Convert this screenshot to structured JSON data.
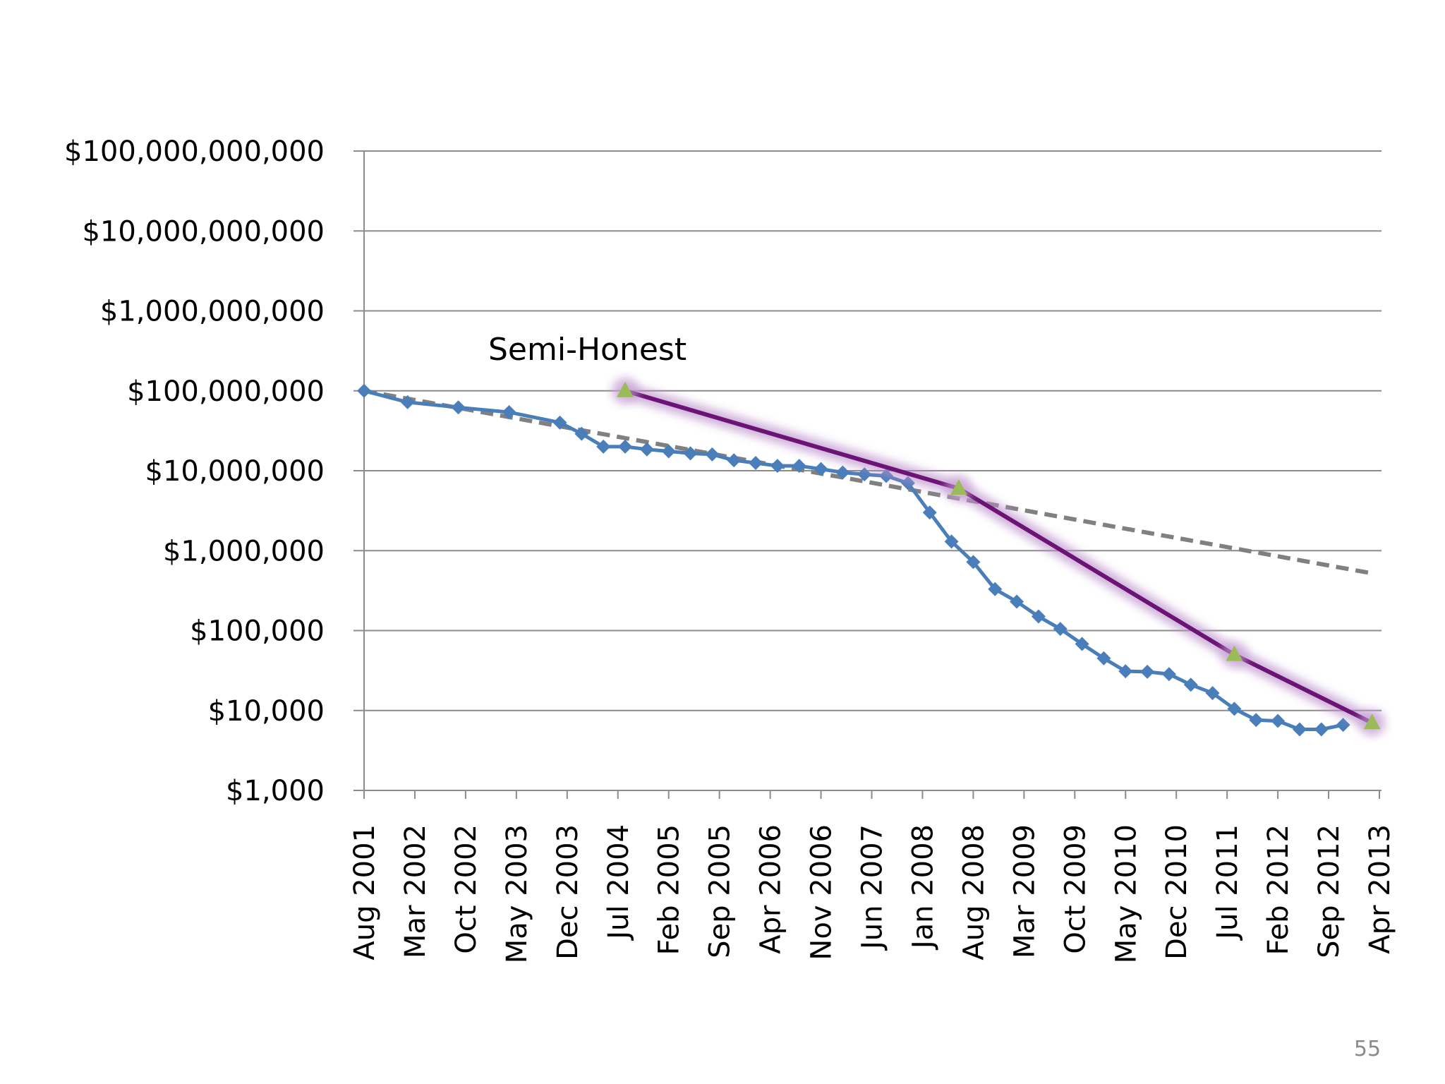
{
  "page_number": "55",
  "chart_data": {
    "type": "line",
    "y_scale": "log",
    "ylim": [
      1000,
      100000000000
    ],
    "xlim": [
      "2001-08",
      "2013-04"
    ],
    "grid": true,
    "legend": "none",
    "yticks": [
      "$1,000",
      "$10,000",
      "$100,000",
      "$1,000,000",
      "$10,000,000",
      "$100,000,000",
      "$1,000,000,000",
      "$10,000,000,000",
      "$100,000,000,000"
    ],
    "ytick_values": [
      1000,
      10000,
      100000,
      1000000,
      10000000,
      100000000,
      1000000000,
      10000000000,
      100000000000
    ],
    "xticks": [
      "Aug 2001",
      "Mar 2002",
      "Oct 2002",
      "May 2003",
      "Dec 2003",
      "Jul 2004",
      "Feb 2005",
      "Sep 2005",
      "Apr 2006",
      "Nov 2006",
      "Jun 2007",
      "Jan 2008",
      "Aug 2008",
      "Mar 2009",
      "Oct 2009",
      "May 2010",
      "Dec 2010",
      "Jul 2011",
      "Feb 2012",
      "Sep 2012",
      "Apr 2013"
    ],
    "annotations": [
      {
        "text": "Semi-Honest",
        "x": "2005-03",
        "y": 250000000
      }
    ],
    "series": [
      {
        "kind": "data",
        "color": "#4a7ebb",
        "marker": "diamond",
        "points": [
          {
            "x": "2001-08",
            "y": 100000000
          },
          {
            "x": "2002-02",
            "y": 72000000
          },
          {
            "x": "2002-09",
            "y": 62000000
          },
          {
            "x": "2003-04",
            "y": 54000000
          },
          {
            "x": "2003-11",
            "y": 40000000
          },
          {
            "x": "2004-02",
            "y": 29000000
          },
          {
            "x": "2004-05",
            "y": 20000000
          },
          {
            "x": "2004-08",
            "y": 20000000
          },
          {
            "x": "2004-11",
            "y": 18500000
          },
          {
            "x": "2005-02",
            "y": 17500000
          },
          {
            "x": "2005-05",
            "y": 16500000
          },
          {
            "x": "2005-08",
            "y": 16000000
          },
          {
            "x": "2005-11",
            "y": 13500000
          },
          {
            "x": "2006-02",
            "y": 12500000
          },
          {
            "x": "2006-05",
            "y": 11500000
          },
          {
            "x": "2006-08",
            "y": 11500000
          },
          {
            "x": "2006-11",
            "y": 10500000
          },
          {
            "x": "2007-02",
            "y": 9500000
          },
          {
            "x": "2007-05",
            "y": 9000000
          },
          {
            "x": "2007-08",
            "y": 8600000
          },
          {
            "x": "2007-11",
            "y": 7000000
          },
          {
            "x": "2008-02",
            "y": 3000000
          },
          {
            "x": "2008-05",
            "y": 1300000
          },
          {
            "x": "2008-08",
            "y": 720000
          },
          {
            "x": "2008-11",
            "y": 330000
          },
          {
            "x": "2009-02",
            "y": 230000
          },
          {
            "x": "2009-05",
            "y": 150000
          },
          {
            "x": "2009-08",
            "y": 105000
          },
          {
            "x": "2009-11",
            "y": 68000
          },
          {
            "x": "2010-02",
            "y": 45000
          },
          {
            "x": "2010-05",
            "y": 31000
          },
          {
            "x": "2010-08",
            "y": 30500
          },
          {
            "x": "2010-11",
            "y": 28500
          },
          {
            "x": "2011-02",
            "y": 21000
          },
          {
            "x": "2011-05",
            "y": 16500
          },
          {
            "x": "2011-08",
            "y": 10500
          },
          {
            "x": "2011-11",
            "y": 7600
          },
          {
            "x": "2012-02",
            "y": 7400
          },
          {
            "x": "2012-05",
            "y": 5800
          },
          {
            "x": "2012-08",
            "y": 5800
          },
          {
            "x": "2012-11",
            "y": 6600
          }
        ]
      },
      {
        "kind": "trend",
        "color": "#808080",
        "dashed": true,
        "points": [
          {
            "x": "2001-08",
            "y": 100000000
          },
          {
            "x": "2013-03",
            "y": 520000
          }
        ]
      },
      {
        "kind": "fit",
        "color": "#6b1476",
        "marker": "triangle",
        "marker_color": "#9bbb59",
        "points": [
          {
            "x": "2004-08",
            "y": 100000000
          },
          {
            "x": "2008-06",
            "y": 6000000
          },
          {
            "x": "2011-08",
            "y": 50000
          },
          {
            "x": "2013-03",
            "y": 7000
          }
        ]
      }
    ]
  }
}
